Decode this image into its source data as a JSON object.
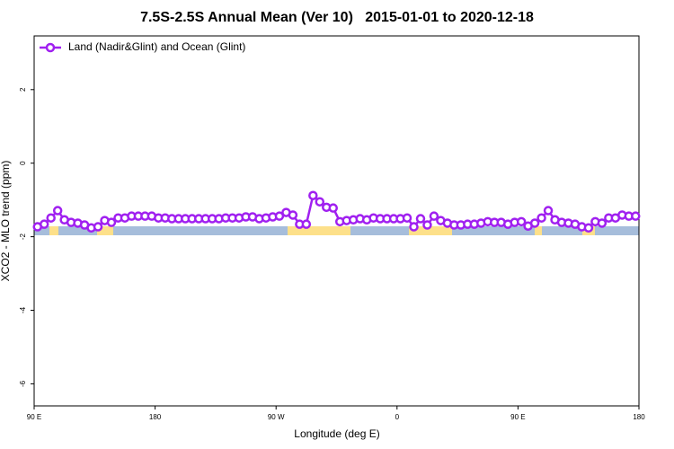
{
  "chart_data": {
    "type": "line",
    "title": "7.5S-2.5S Annual Mean (Ver 10)   2015-01-01 to 2020-12-18",
    "x_label": "Longitude (deg E)",
    "y_label": "XCO2 - MLO trend (ppm)",
    "xlim": [
      90,
      540
    ],
    "ylim": [
      -6.6,
      3.46
    ],
    "xticks": [
      {
        "value": 90,
        "label": "90 E"
      },
      180,
      {
        "value": 270,
        "label": "90 W"
      },
      {
        "value": 360,
        "label": "0"
      },
      {
        "value": 450,
        "label": "90 E"
      },
      {
        "value": 540,
        "label": "180"
      }
    ],
    "yticks": [
      2,
      0,
      -2,
      -4,
      -6
    ],
    "legend": "top-left",
    "series": [
      {
        "name": "Land (Nadir&Glint) and Ocean (Glint)",
        "color": "#a020f0",
        "x": [
          92.5,
          97.5,
          102.5,
          107.5,
          112.5,
          117.5,
          122.5,
          127.5,
          132.5,
          137.5,
          142.5,
          147.5,
          152.5,
          157.5,
          162.5,
          167.5,
          172.5,
          177.5,
          182.5,
          187.5,
          192.5,
          197.5,
          202.5,
          207.5,
          212.5,
          217.5,
          222.5,
          227.5,
          232.5,
          237.5,
          242.5,
          247.5,
          252.5,
          257.5,
          262.5,
          267.5,
          272.5,
          277.5,
          282.5,
          287.5,
          292.5,
          297.5,
          302.5,
          307.5,
          312.5,
          317.5,
          322.5,
          327.5,
          332.5,
          337.5,
          342.5,
          347.5,
          352.5,
          357.5,
          362.5,
          367.5,
          372.5,
          377.5,
          382.5,
          387.5,
          392.5,
          397.5,
          402.5,
          407.5,
          412.5,
          417.5,
          422.5,
          427.5,
          432.5,
          437.5,
          442.5,
          447.5,
          452.5,
          457.5,
          462.5,
          467.5,
          472.5,
          477.5,
          482.5,
          487.5,
          492.5,
          497.5,
          502.5,
          507.5,
          512.5,
          517.5,
          522.5,
          527.5,
          532.5,
          537.5
        ],
        "values": [
          -1.73,
          -1.66,
          -1.49,
          -1.29,
          -1.54,
          -1.61,
          -1.63,
          -1.68,
          -1.76,
          -1.73,
          -1.56,
          -1.61,
          -1.49,
          -1.49,
          -1.44,
          -1.44,
          -1.44,
          -1.44,
          -1.49,
          -1.49,
          -1.51,
          -1.51,
          -1.51,
          -1.51,
          -1.51,
          -1.51,
          -1.51,
          -1.51,
          -1.49,
          -1.49,
          -1.49,
          -1.46,
          -1.46,
          -1.51,
          -1.49,
          -1.46,
          -1.44,
          -1.34,
          -1.41,
          -1.66,
          -1.66,
          -0.88,
          -1.05,
          -1.2,
          -1.22,
          -1.59,
          -1.56,
          -1.54,
          -1.51,
          -1.54,
          -1.49,
          -1.51,
          -1.51,
          -1.51,
          -1.51,
          -1.49,
          -1.73,
          -1.51,
          -1.68,
          -1.44,
          -1.56,
          -1.63,
          -1.68,
          -1.68,
          -1.66,
          -1.66,
          -1.63,
          -1.59,
          -1.61,
          -1.61,
          -1.66,
          -1.61,
          -1.59,
          -1.71,
          -1.63,
          -1.49,
          -1.29,
          -1.54,
          -1.61,
          -1.63,
          -1.66,
          -1.73,
          -1.76,
          -1.59,
          -1.63,
          -1.49,
          -1.49,
          -1.41,
          -1.44,
          -1.44
        ]
      }
    ]
  }
}
